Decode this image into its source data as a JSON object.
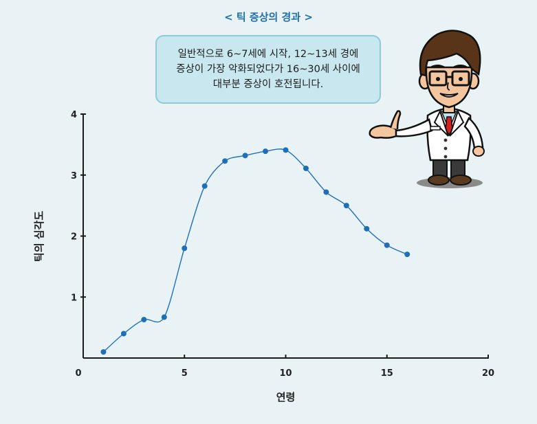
{
  "bubble": {
    "lines": [
      "일반적으로 6~7세에 시작, 12~13세 경에",
      "증상이 가장 악화되었다가 16~30세 사이에",
      "대부분 증상이 호전됩니다."
    ]
  },
  "chart_data": {
    "type": "line",
    "title": "< 틱 증상의 경과 >",
    "xlabel": "연령",
    "ylabel": "틱의 심각도",
    "xlim": [
      0,
      20
    ],
    "ylim": [
      0,
      4
    ],
    "xticks": [
      "0",
      "5",
      "10",
      "15",
      "20"
    ],
    "yticks": [
      "1",
      "2",
      "3",
      "4"
    ],
    "grid": false,
    "series": [
      {
        "x": [
          1,
          2,
          3,
          4,
          5,
          6,
          7,
          8,
          9,
          10,
          11,
          12,
          13,
          14,
          15,
          16
        ],
        "values": [
          0.1,
          0.4,
          0.63,
          0.67,
          1.8,
          2.82,
          3.23,
          3.32,
          3.39,
          3.41,
          3.11,
          2.72,
          2.5,
          2.12,
          1.85,
          1.7
        ]
      }
    ],
    "colors": {
      "line": "#1f6fb8",
      "marker": "#1f6fb8",
      "axis": "#1a1a1a",
      "title": "#1f6fa8"
    }
  }
}
